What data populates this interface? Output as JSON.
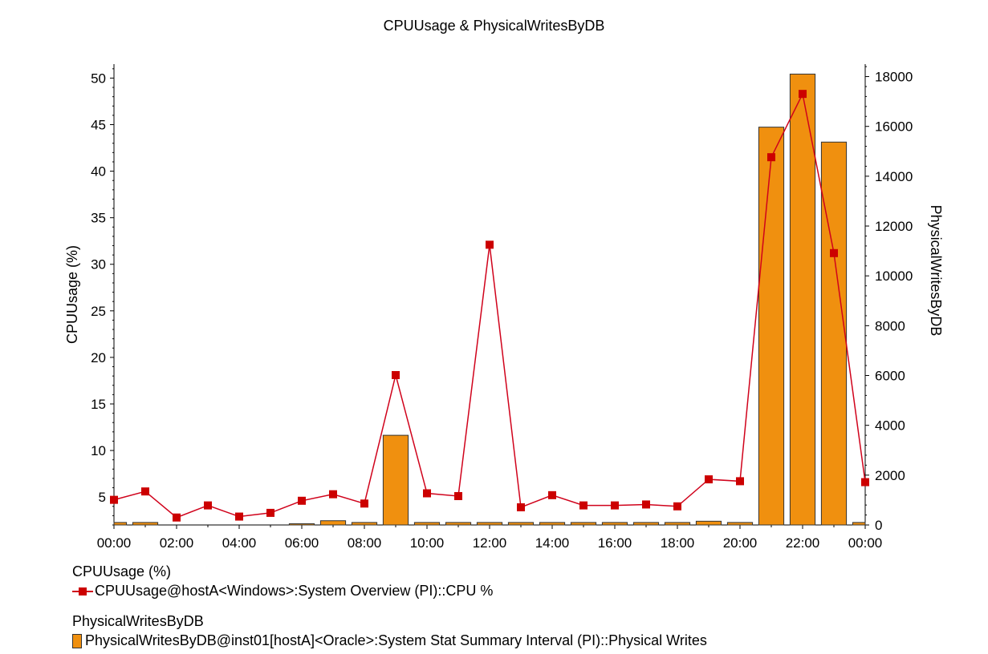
{
  "colors": {
    "line": "#d0021b",
    "marker": "#cc0000",
    "bar": "#f0900f",
    "bar_border": "#333333",
    "axis": "#000000"
  },
  "chart_data": {
    "type": "bar+line",
    "title": "CPUUsage & PhysicalWritesByDB",
    "x_tick_labels": [
      "00:00",
      "02:00",
      "04:00",
      "06:00",
      "08:00",
      "10:00",
      "12:00",
      "14:00",
      "16:00",
      "18:00",
      "20:00",
      "22:00",
      "00:00"
    ],
    "y_left": {
      "label": "CPUUsage (%)",
      "ticks": [
        5,
        10,
        15,
        20,
        25,
        30,
        35,
        40,
        45,
        50
      ],
      "lim": [
        2,
        51.5
      ]
    },
    "y_right": {
      "label": "PhysicalWritesByDB",
      "ticks": [
        0,
        2000,
        4000,
        6000,
        8000,
        10000,
        12000,
        14000,
        16000,
        18000
      ],
      "lim": [
        0,
        18500
      ]
    },
    "hours": [
      0,
      1,
      2,
      3,
      4,
      5,
      6,
      7,
      8,
      9,
      10,
      11,
      12,
      13,
      14,
      15,
      16,
      17,
      18,
      19,
      20,
      21,
      22,
      23,
      24
    ],
    "series": [
      {
        "name": "CPUUsage@hostA<Windows>:System Overview (PI)::CPU %",
        "axis": "left",
        "kind": "line",
        "values": [
          4.7,
          5.6,
          2.8,
          4.1,
          2.9,
          3.3,
          4.6,
          5.3,
          4.3,
          18.1,
          5.4,
          5.1,
          32.1,
          3.9,
          5.2,
          4.1,
          4.1,
          4.2,
          4.0,
          6.9,
          6.7,
          41.5,
          48.3,
          31.2,
          6.6
        ]
      },
      {
        "name": "PhysicalWritesByDB@inst01[hostA]<Oracle>:System Stat Summary Interval (PI)::Physical Writes",
        "axis": "right",
        "kind": "bar",
        "values": [
          100,
          100,
          0,
          0,
          0,
          0,
          50,
          170,
          100,
          3600,
          100,
          100,
          100,
          100,
          100,
          100,
          100,
          100,
          100,
          150,
          100,
          15970,
          18100,
          15370,
          100
        ]
      }
    ]
  },
  "legend": [
    {
      "group": "CPUUsage (%)",
      "entry": "CPUUsage@hostA<Windows>:System Overview (PI)::CPU %",
      "kind": "line"
    },
    {
      "group": "PhysicalWritesByDB",
      "entry": "PhysicalWritesByDB@inst01[hostA]<Oracle>:System Stat Summary Interval (PI)::Physical Writes",
      "kind": "bar"
    }
  ]
}
